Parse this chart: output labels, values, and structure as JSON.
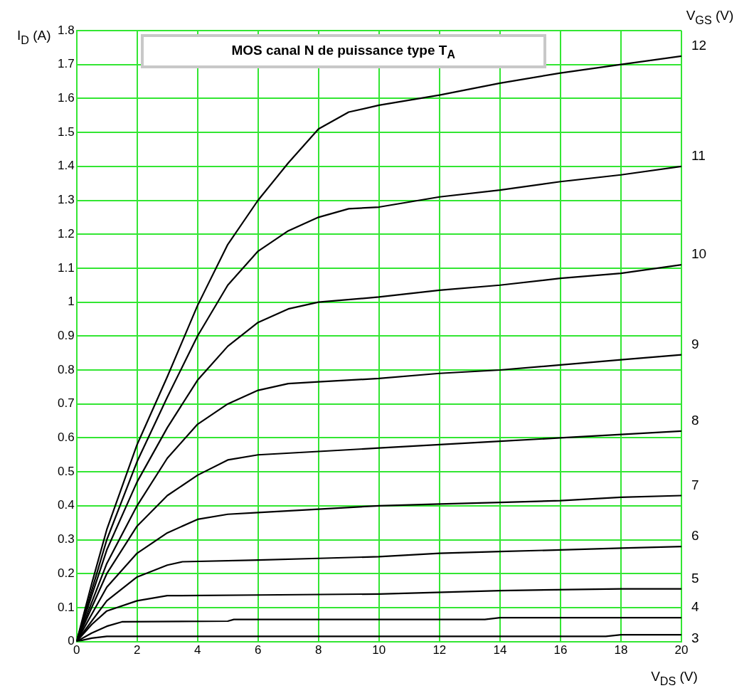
{
  "chart_data": {
    "type": "line",
    "title": "MOS canal N de puissance type T$_{A}$",
    "xlabel": "V$_{DS}$ (V)",
    "ylabel": "I$_{D}$ (A)",
    "legend_title": "V$_{GS}$ (V)",
    "xlim": [
      0,
      20
    ],
    "xticks": [
      0,
      2,
      4,
      6,
      8,
      10,
      12,
      14,
      16,
      18,
      20
    ],
    "ylim": [
      0,
      1.8
    ],
    "yticks": [
      0,
      0.1,
      0.2,
      0.3,
      0.4,
      0.5,
      0.6,
      0.7,
      0.8,
      0.9,
      1,
      1.1,
      1.2,
      1.3,
      1.4,
      1.5,
      1.6,
      1.7,
      1.8
    ],
    "grid": true,
    "legend": false,
    "marker": "none",
    "line_style": "solid",
    "series": [
      {
        "name": "3",
        "color": "#000000",
        "x": [
          0,
          0.5,
          1,
          17.5,
          18,
          20
        ],
        "values": [
          0,
          0.01,
          0.015,
          0.015,
          0.02,
          0.02
        ]
      },
      {
        "name": "4",
        "color": "#000000",
        "x": [
          0,
          0.5,
          1,
          1.5,
          5,
          5.2,
          13.5,
          14,
          20
        ],
        "values": [
          0,
          0.025,
          0.045,
          0.058,
          0.06,
          0.065,
          0.065,
          0.07,
          0.07
        ]
      },
      {
        "name": "5",
        "color": "#000000",
        "x": [
          0,
          0.5,
          1,
          2,
          3,
          6,
          10,
          14,
          18,
          20
        ],
        "values": [
          0,
          0.05,
          0.09,
          0.12,
          0.135,
          0.137,
          0.14,
          0.15,
          0.155,
          0.155
        ]
      },
      {
        "name": "6",
        "color": "#000000",
        "x": [
          0,
          1,
          2,
          3,
          3.5,
          6,
          8,
          10,
          12,
          14,
          16,
          18,
          20
        ],
        "values": [
          0,
          0.12,
          0.19,
          0.225,
          0.235,
          0.24,
          0.245,
          0.25,
          0.26,
          0.265,
          0.27,
          0.275,
          0.28
        ]
      },
      {
        "name": "7",
        "color": "#000000",
        "x": [
          0,
          1,
          2,
          3,
          4,
          5,
          6,
          8,
          10,
          12,
          14,
          16,
          18,
          20
        ],
        "values": [
          0,
          0.16,
          0.26,
          0.32,
          0.36,
          0.375,
          0.38,
          0.39,
          0.4,
          0.405,
          0.41,
          0.415,
          0.425,
          0.43
        ]
      },
      {
        "name": "8",
        "color": "#000000",
        "x": [
          0,
          1,
          2,
          3,
          4,
          5,
          6,
          8,
          10,
          12,
          14,
          16,
          18,
          20
        ],
        "values": [
          0,
          0.2,
          0.34,
          0.43,
          0.49,
          0.535,
          0.55,
          0.56,
          0.57,
          0.58,
          0.59,
          0.6,
          0.61,
          0.62
        ]
      },
      {
        "name": "9",
        "color": "#000000",
        "x": [
          0,
          1,
          2,
          3,
          4,
          5,
          6,
          7,
          8,
          10,
          12,
          14,
          16,
          18,
          20
        ],
        "values": [
          0,
          0.23,
          0.4,
          0.54,
          0.64,
          0.7,
          0.74,
          0.76,
          0.765,
          0.775,
          0.79,
          0.8,
          0.815,
          0.83,
          0.845
        ]
      },
      {
        "name": "10",
        "color": "#000000",
        "x": [
          0,
          1,
          2,
          3,
          4,
          5,
          6,
          7,
          8,
          10,
          12,
          14,
          16,
          18,
          20
        ],
        "values": [
          0,
          0.27,
          0.47,
          0.63,
          0.77,
          0.87,
          0.94,
          0.98,
          1.0,
          1.015,
          1.035,
          1.05,
          1.07,
          1.085,
          1.11
        ]
      },
      {
        "name": "11",
        "color": "#000000",
        "x": [
          0,
          1,
          2,
          3,
          4,
          5,
          6,
          7,
          8,
          9,
          10,
          12,
          14,
          16,
          18,
          20
        ],
        "values": [
          0,
          0.3,
          0.53,
          0.72,
          0.9,
          1.05,
          1.15,
          1.21,
          1.25,
          1.275,
          1.28,
          1.31,
          1.33,
          1.355,
          1.375,
          1.4
        ]
      },
      {
        "name": "12",
        "color": "#000000",
        "x": [
          0,
          0.5,
          1,
          2,
          3,
          4,
          5,
          6,
          7,
          8,
          9,
          10,
          12,
          14,
          16,
          18,
          20
        ],
        "values": [
          0,
          0.17,
          0.33,
          0.58,
          0.78,
          0.99,
          1.17,
          1.3,
          1.41,
          1.51,
          1.56,
          1.58,
          1.61,
          1.645,
          1.675,
          1.7,
          1.725
        ]
      }
    ]
  }
}
